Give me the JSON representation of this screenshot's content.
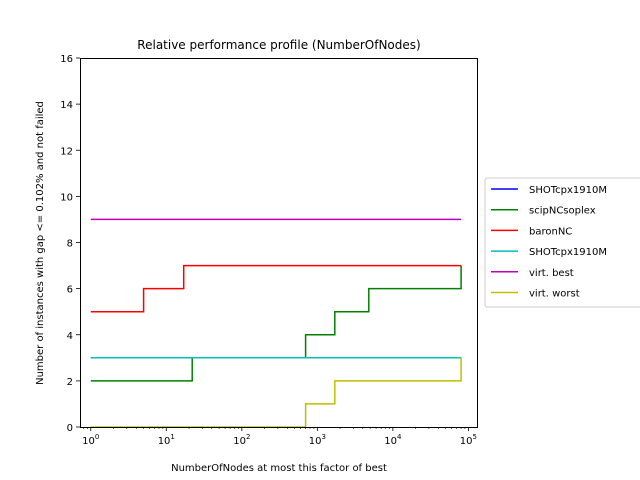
{
  "chart_data": {
    "type": "line",
    "step": "post",
    "title": "Relative performance profile (NumberOfNodes)",
    "xlabel": "NumberOfNodes at most this factor of best",
    "ylabel": "Number of instances with gap <= 0.102% and not failed",
    "xscale": "log",
    "xlim": [
      0.72,
      130000
    ],
    "ylim": [
      0,
      16
    ],
    "xticks": [
      {
        "value": 1,
        "base": "10",
        "exp": "0"
      },
      {
        "value": 10,
        "base": "10",
        "exp": "1"
      },
      {
        "value": 100,
        "base": "10",
        "exp": "2"
      },
      {
        "value": 1000,
        "base": "10",
        "exp": "3"
      },
      {
        "value": 10000,
        "base": "10",
        "exp": "4"
      },
      {
        "value": 100000,
        "base": "10",
        "exp": "5"
      }
    ],
    "yticks": [
      "0",
      "2",
      "4",
      "6",
      "8",
      "10",
      "12",
      "14",
      "16"
    ],
    "grid": false,
    "legend_placement": "outside-right",
    "series": [
      {
        "name": "SHOTcpx1910M",
        "color": "#0000ff",
        "x": [
          1,
          80000
        ],
        "y": [
          3,
          3
        ]
      },
      {
        "name": "scipNCsoplex",
        "color": "#008000",
        "x": [
          1,
          22,
          700,
          1700,
          4800,
          80000
        ],
        "y": [
          2,
          3,
          4,
          5,
          6,
          7
        ]
      },
      {
        "name": "baronNC",
        "color": "#ff0000",
        "x": [
          1,
          5,
          17,
          80000
        ],
        "y": [
          5,
          6,
          7,
          7
        ]
      },
      {
        "name": "SHOTcpx1910M",
        "color": "#00bfbf",
        "x": [
          1,
          80000
        ],
        "y": [
          3,
          3
        ]
      },
      {
        "name": "virt. best",
        "color": "#bf00bf",
        "x": [
          1,
          80000
        ],
        "y": [
          9,
          9
        ]
      },
      {
        "name": "virt. worst",
        "color": "#bfbf00",
        "x": [
          1,
          700,
          1700,
          80000
        ],
        "y": [
          0,
          1,
          2,
          3
        ]
      }
    ]
  }
}
